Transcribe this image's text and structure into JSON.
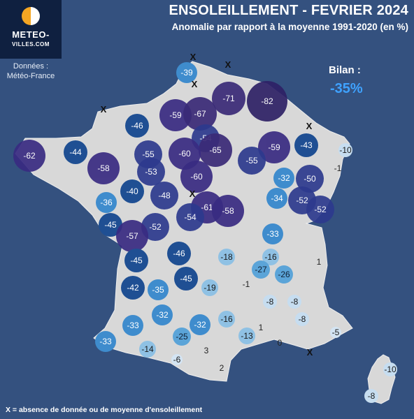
{
  "header": {
    "title": "ENSOLEILLEMENT - FEVRIER 2024",
    "subtitle": "Anomalie par rapport à la moyenne 1991-2020 (en %)"
  },
  "logo": {
    "line1": "METEO-",
    "line2": "VILLES.COM"
  },
  "source": {
    "line1": "Données :",
    "line2": "Météo-France"
  },
  "summary": {
    "label": "Bilan :",
    "value": "-35%"
  },
  "legend_note": "X = absence de donnée ou de moyenne d'ensoleillement",
  "colors": {
    "background": "#34517f",
    "land": "#d8d8d8",
    "summary_value": "#3fa2ff"
  },
  "stations": [
    {
      "v": "-39"
    },
    {
      "v": "-71"
    },
    {
      "v": "-82"
    },
    {
      "v": "-59"
    },
    {
      "v": "-67"
    },
    {
      "v": "-46"
    },
    {
      "v": "-54"
    },
    {
      "v": "-65"
    },
    {
      "v": "-59"
    },
    {
      "v": "-43"
    },
    {
      "v": "-62"
    },
    {
      "v": "-44"
    },
    {
      "v": "-58"
    },
    {
      "v": "-55"
    },
    {
      "v": "-60"
    },
    {
      "v": "-55"
    },
    {
      "v": "-53"
    },
    {
      "v": "-60"
    },
    {
      "v": "-32"
    },
    {
      "v": "-50"
    },
    {
      "v": "-52"
    },
    {
      "v": "-40"
    },
    {
      "v": "-48"
    },
    {
      "v": "-34"
    },
    {
      "v": "-52"
    },
    {
      "v": "-36"
    },
    {
      "v": "-61"
    },
    {
      "v": "-58"
    },
    {
      "v": "-54"
    },
    {
      "v": "-45"
    },
    {
      "v": "-52"
    },
    {
      "v": "-57"
    },
    {
      "v": "-33"
    },
    {
      "v": "-46"
    },
    {
      "v": "-45"
    },
    {
      "v": "-18"
    },
    {
      "v": "-16"
    },
    {
      "v": "-27"
    },
    {
      "v": "-26"
    },
    {
      "v": "-45"
    },
    {
      "v": "-42"
    },
    {
      "v": "-35"
    },
    {
      "v": "-19"
    },
    {
      "v": "-32"
    },
    {
      "v": "-16"
    },
    {
      "v": "-33"
    },
    {
      "v": "-32"
    },
    {
      "v": "-25"
    },
    {
      "v": "-13"
    },
    {
      "v": "-33"
    },
    {
      "v": "-14"
    },
    {
      "v": "-10"
    },
    {
      "v": "-8"
    },
    {
      "v": "-8"
    },
    {
      "v": "-5"
    },
    {
      "v": "-8"
    },
    {
      "v": "-10"
    },
    {
      "v": "-8"
    },
    {
      "v": "-6"
    },
    {
      "v": "-1"
    },
    {
      "v": "1"
    },
    {
      "v": "-1"
    },
    {
      "v": "1"
    },
    {
      "v": "3"
    },
    {
      "v": "2"
    },
    {
      "v": "0"
    }
  ],
  "missing_marker": "X"
}
